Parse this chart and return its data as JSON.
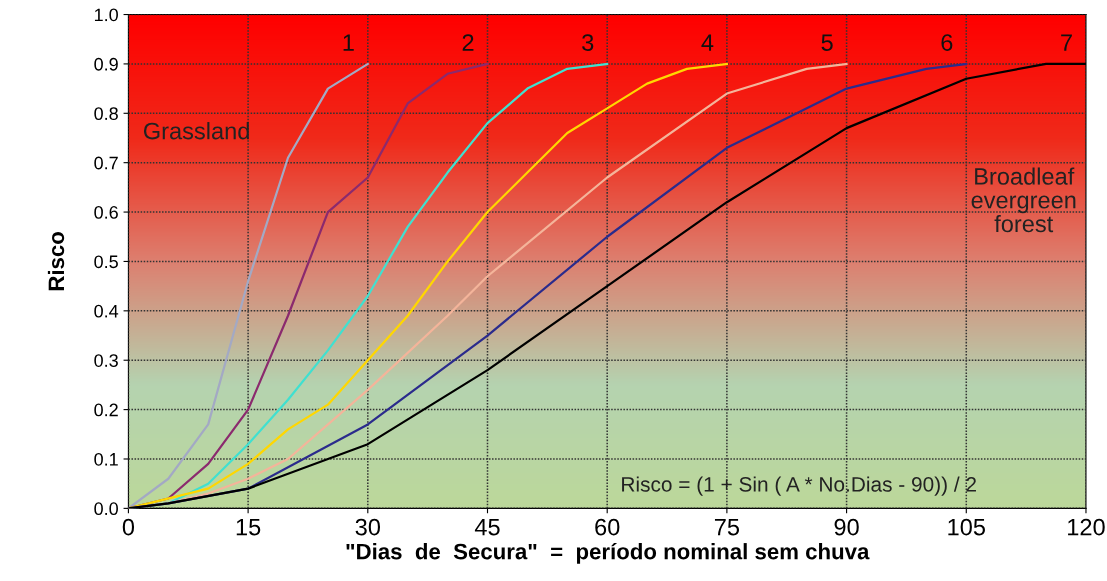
{
  "chart_data": {
    "type": "line",
    "xlabel": "\"Dias  de  Secura\"  =  período nominal sem chuva",
    "ylabel": "Risco",
    "xlim": [
      0,
      120
    ],
    "xticks": [
      0,
      15,
      30,
      45,
      60,
      75,
      90,
      105,
      120
    ],
    "ylim": [
      0,
      1.0
    ],
    "yticks": [
      {
        "value": 0,
        "label": "0.0"
      },
      0.1,
      0.2,
      0.3,
      0.4,
      0.5,
      0.6,
      0.7,
      0.8,
      0.9,
      {
        "value": 1,
        "label": "1.0"
      }
    ],
    "grid": true,
    "legend": false,
    "line_style": "solid",
    "marker": "none",
    "annotations": [
      "Grassland",
      "Broadleaf\nevergreen\nforest",
      "Risco = (1 + Sin ( A * No.Dias - 90)) / 2"
    ],
    "series": [
      {
        "name": "1",
        "color": "#a3a9c4",
        "x": [
          0,
          5,
          10,
          15,
          20,
          25,
          30
        ],
        "values": [
          0,
          0.06,
          0.17,
          0.46,
          0.71,
          0.85,
          0.9
        ]
      },
      {
        "name": "2",
        "color": "#8b2a6e",
        "x": [
          0,
          5,
          10,
          15,
          20,
          25,
          30,
          35,
          40,
          45
        ],
        "values": [
          0,
          0.02,
          0.09,
          0.2,
          0.39,
          0.6,
          0.67,
          0.82,
          0.88,
          0.9
        ]
      },
      {
        "name": "3",
        "color": "#40e0d0",
        "x": [
          0,
          5,
          10,
          15,
          20,
          25,
          30,
          35,
          40,
          45,
          50,
          55,
          60
        ],
        "values": [
          0,
          0.01,
          0.05,
          0.13,
          0.22,
          0.32,
          0.43,
          0.57,
          0.68,
          0.78,
          0.85,
          0.89,
          0.9
        ]
      },
      {
        "name": "4",
        "color": "#ffd700",
        "x": [
          0,
          10,
          15,
          20,
          25,
          30,
          35,
          40,
          45,
          50,
          55,
          60,
          65,
          70,
          75
        ],
        "values": [
          0,
          0.04,
          0.09,
          0.16,
          0.21,
          0.3,
          0.39,
          0.5,
          0.6,
          0.68,
          0.76,
          0.81,
          0.86,
          0.89,
          0.9
        ]
      },
      {
        "name": "5",
        "color": "#f4b49a",
        "x": [
          0,
          5,
          10,
          15,
          20,
          30,
          40,
          45,
          60,
          75,
          85,
          90
        ],
        "values": [
          0,
          0.01,
          0.03,
          0.06,
          0.1,
          0.24,
          0.39,
          0.47,
          0.67,
          0.84,
          0.89,
          0.9
        ]
      },
      {
        "name": "6",
        "color": "#2b2b8c",
        "x": [
          0,
          5,
          15,
          30,
          45,
          60,
          75,
          90,
          100,
          105
        ],
        "values": [
          0,
          0.01,
          0.04,
          0.17,
          0.35,
          0.55,
          0.73,
          0.85,
          0.89,
          0.9
        ]
      },
      {
        "name": "7",
        "color": "#000000",
        "x": [
          0,
          5,
          15,
          30,
          45,
          60,
          75,
          90,
          105,
          115,
          120
        ],
        "values": [
          0,
          0.01,
          0.04,
          0.13,
          0.28,
          0.45,
          0.62,
          0.77,
          0.87,
          0.9,
          0.9
        ]
      }
    ]
  }
}
